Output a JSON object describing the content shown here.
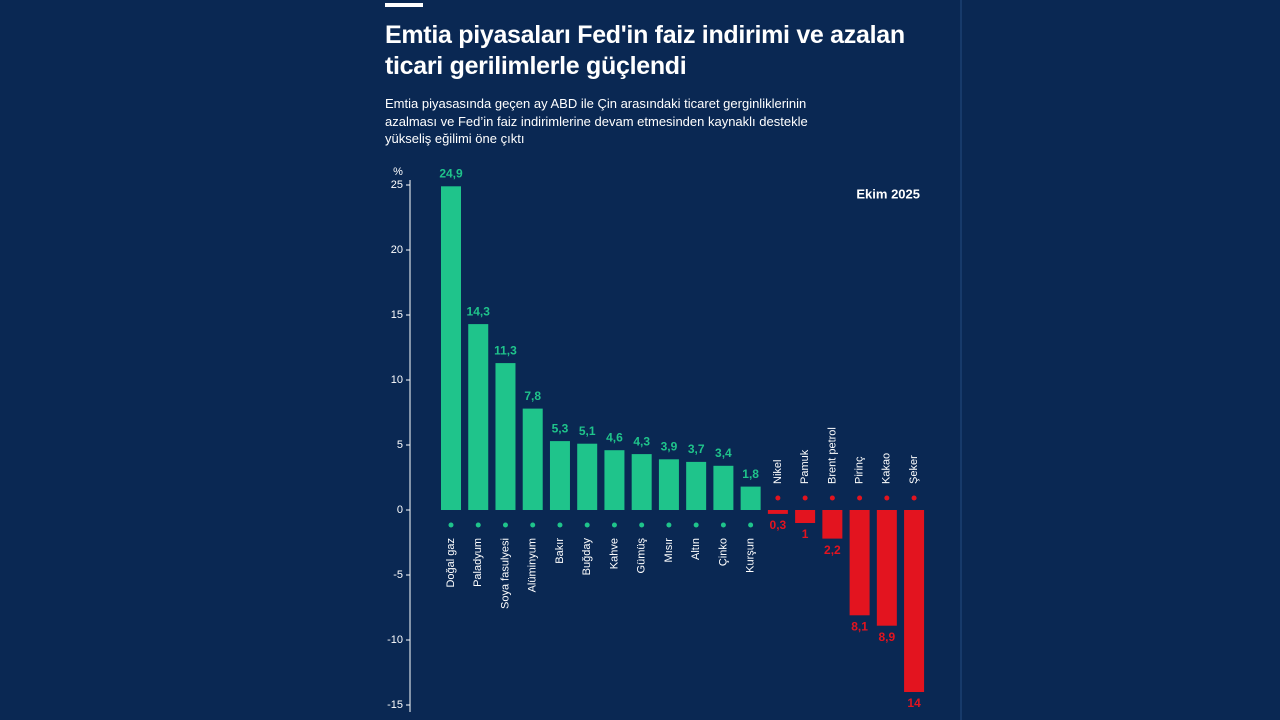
{
  "chart_data": {
    "type": "bar",
    "title": "Emtia piyasaları Fed'in faiz indirimi ve azalan ticari gerilimlerle güçlendi",
    "subtitle": "Emtia piyasasında geçen ay ABD ile Çin arasındaki ticaret gerginliklerinin azalması ve Fed’in faiz indirimlerine devam etmesinden kaynaklı destekle yükseliş eğilimi öne çıktı",
    "y_label": "%",
    "note": "Ekim 2025",
    "categories": [
      "Doğal gaz",
      "Paladyum",
      "Soya fasulyesi",
      "Alüminyum",
      "Bakır",
      "Buğday",
      "Kahve",
      "Gümüş",
      "Mısır",
      "Altın",
      "Çinko",
      "Kurşun",
      "Nikel",
      "Pamuk",
      "Brent petrol",
      "Pirinç",
      "Kakao",
      "Şeker"
    ],
    "values": [
      24.9,
      14.3,
      11.3,
      7.8,
      5.3,
      5.1,
      4.6,
      4.3,
      3.9,
      3.7,
      3.4,
      1.8,
      -0.3,
      -1,
      -2.2,
      -8.1,
      -8.9,
      -14
    ],
    "value_labels": [
      "24,9",
      "14,3",
      "11,3",
      "7,8",
      "5,3",
      "5,1",
      "4,6",
      "4,3",
      "3,9",
      "3,7",
      "3,4",
      "1,8",
      "0,3",
      "1",
      "2,2",
      "8,1",
      "8,9",
      "14"
    ],
    "positive_color": "#1fc48b",
    "negative_color": "#e3141f",
    "ylim": [
      -15,
      25
    ],
    "yticks": [
      -15,
      -10,
      -5,
      0,
      5,
      10,
      15,
      20,
      25
    ]
  }
}
